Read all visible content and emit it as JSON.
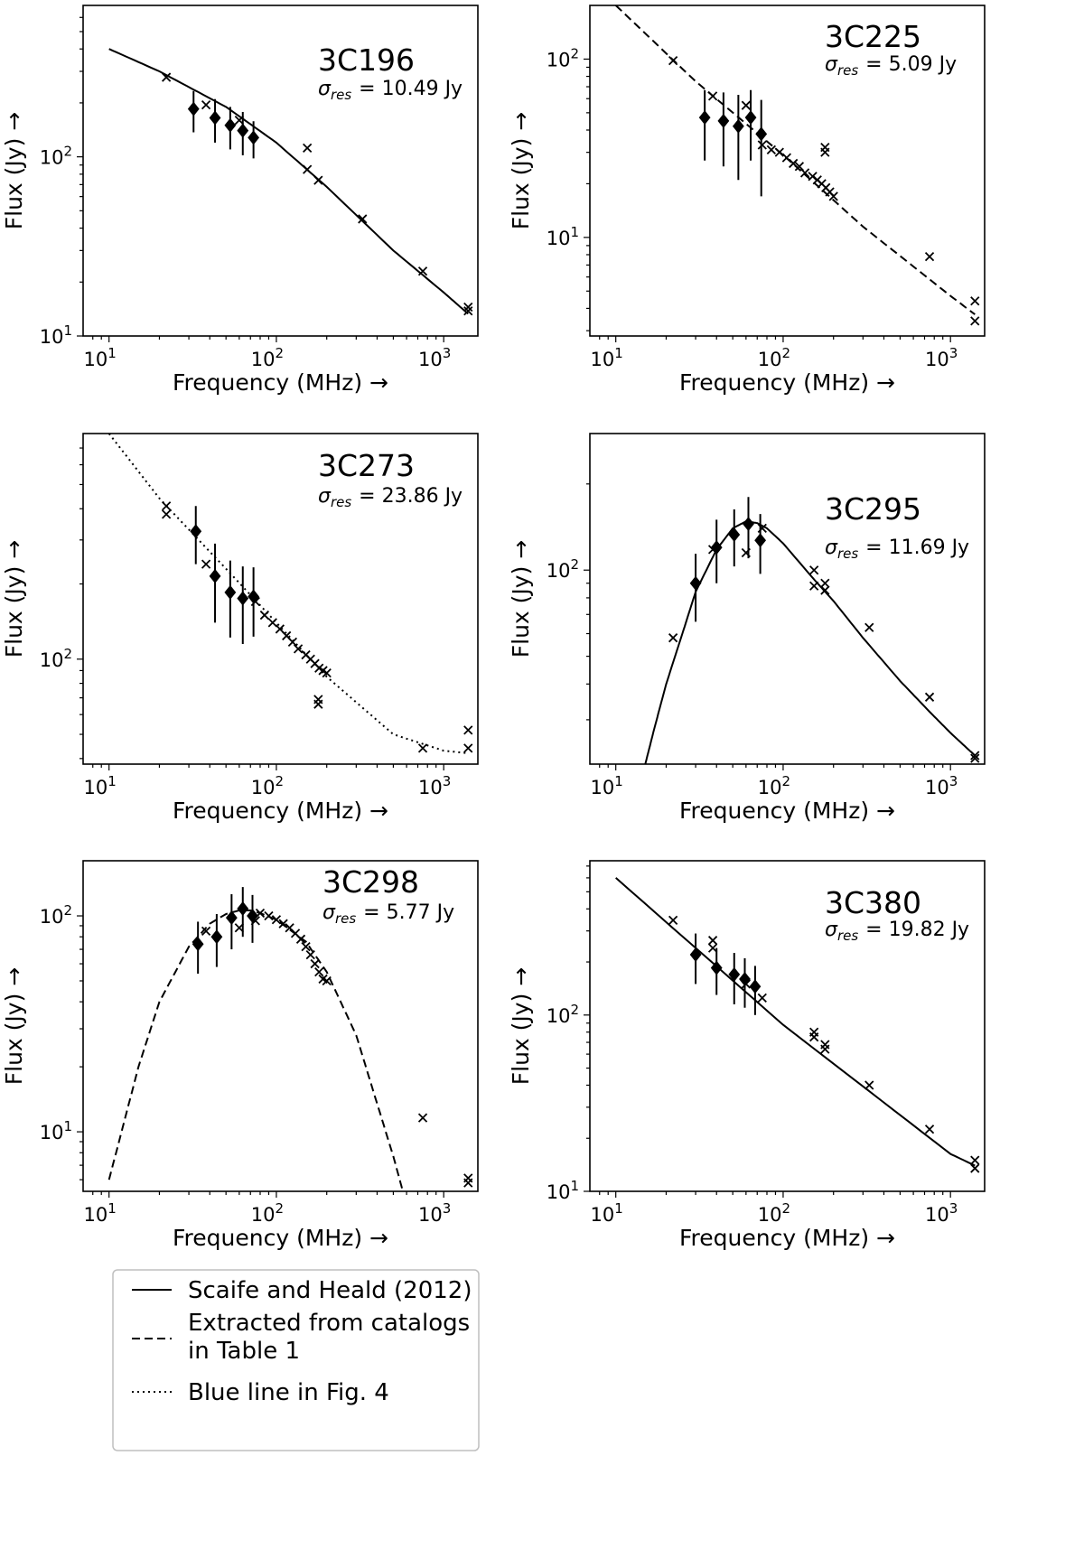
{
  "figure": {
    "legend": [
      {
        "style": "solid",
        "lines": [
          "Scaife and Heald (2012)"
        ]
      },
      {
        "style": "dashed",
        "lines": [
          "Extracted from catalogs",
          "in Table 1"
        ]
      },
      {
        "style": "dotted",
        "lines": [
          "Blue line in Fig. 4"
        ]
      }
    ]
  },
  "chart_data": [
    {
      "type": "scatter",
      "title": "3C196",
      "sigma_label": "σres",
      "sigma_value": "= 10.49 Jy",
      "xlabel": "Frequency (MHz)  →",
      "ylabel": "Flux (Jy)  →",
      "xscale": "log",
      "yscale": "log",
      "xlim": [
        7,
        1600
      ],
      "ylim": [
        10,
        700
      ],
      "xticks": [
        {
          "value": 10,
          "base": "10",
          "exp": "1"
        },
        {
          "value": 100,
          "base": "10",
          "exp": "2"
        },
        {
          "value": 1000,
          "base": "10",
          "exp": "3"
        }
      ],
      "yticks": [
        {
          "value": 10,
          "base": "10",
          "exp": "1"
        },
        {
          "value": 100,
          "base": "10",
          "exp": "2"
        }
      ],
      "model_style": "solid",
      "model_curve": [
        [
          10,
          400
        ],
        [
          20,
          300
        ],
        [
          50,
          190
        ],
        [
          100,
          120
        ],
        [
          200,
          68
        ],
        [
          500,
          30
        ],
        [
          1000,
          17.5
        ],
        [
          1400,
          13.3
        ]
      ],
      "catalog_points": [
        [
          22,
          278
        ],
        [
          38,
          195
        ],
        [
          60,
          160
        ],
        [
          153,
          112
        ],
        [
          153,
          85
        ],
        [
          178,
          74
        ],
        [
          327,
          45
        ],
        [
          750,
          23
        ],
        [
          1400,
          14.5
        ],
        [
          1400,
          13.8
        ]
      ],
      "diamond_points": [
        {
          "x": 32,
          "y": 185,
          "err": 48
        },
        {
          "x": 43,
          "y": 165,
          "err": 45
        },
        {
          "x": 53,
          "y": 150,
          "err": 40
        },
        {
          "x": 63,
          "y": 140,
          "err": 38
        },
        {
          "x": 73,
          "y": 128,
          "err": 30
        }
      ]
    },
    {
      "type": "scatter",
      "title": "3C225",
      "sigma_label": "σres",
      "sigma_value": "= 5.09 Jy",
      "xlabel": "Frequency (MHz)  →",
      "ylabel": "Flux (Jy)  →",
      "xscale": "log",
      "yscale": "log",
      "xlim": [
        7,
        1600
      ],
      "ylim": [
        2.8,
        200
      ],
      "xticks": [
        {
          "value": 10,
          "base": "10",
          "exp": "1"
        },
        {
          "value": 100,
          "base": "10",
          "exp": "2"
        },
        {
          "value": 1000,
          "base": "10",
          "exp": "3"
        }
      ],
      "yticks": [
        {
          "value": 10,
          "base": "10",
          "exp": "1"
        },
        {
          "value": 100,
          "base": "10",
          "exp": "2"
        }
      ],
      "model_style": "dashed",
      "model_curve": [
        [
          10,
          200
        ],
        [
          30,
          75
        ],
        [
          100,
          29
        ],
        [
          300,
          11.5
        ],
        [
          1000,
          4.7
        ],
        [
          1400,
          3.7
        ]
      ],
      "catalog_points": [
        [
          22,
          98
        ],
        [
          38,
          62
        ],
        [
          60,
          55
        ],
        [
          75,
          33
        ],
        [
          85,
          31
        ],
        [
          95,
          30
        ],
        [
          105,
          28
        ],
        [
          115,
          26
        ],
        [
          125,
          25
        ],
        [
          135,
          23
        ],
        [
          150,
          22
        ],
        [
          160,
          21
        ],
        [
          170,
          20
        ],
        [
          180,
          19
        ],
        [
          190,
          18
        ],
        [
          200,
          17
        ],
        [
          178,
          32
        ],
        [
          178,
          30
        ],
        [
          750,
          7.8
        ],
        [
          1400,
          4.4
        ],
        [
          1400,
          3.4
        ]
      ],
      "diamond_points": [
        {
          "x": 34,
          "y": 47,
          "err": 20
        },
        {
          "x": 44,
          "y": 45,
          "err": 20
        },
        {
          "x": 54,
          "y": 42,
          "err": 21
        },
        {
          "x": 64,
          "y": 47,
          "err": 20
        },
        {
          "x": 74,
          "y": 38,
          "err": 21
        }
      ]
    },
    {
      "type": "scatter",
      "title": "3C273",
      "sigma_label": "σres",
      "sigma_value": "= 23.86 Jy",
      "xlabel": "Frequency (MHz)  →",
      "ylabel": "Flux (Jy)  →",
      "xscale": "log",
      "yscale": "log",
      "xlim": [
        7,
        1600
      ],
      "ylim": [
        38,
        800
      ],
      "xticks": [
        {
          "value": 10,
          "base": "10",
          "exp": "1"
        },
        {
          "value": 100,
          "base": "10",
          "exp": "2"
        },
        {
          "value": 1000,
          "base": "10",
          "exp": "3"
        }
      ],
      "yticks": [
        {
          "value": 100,
          "base": "10",
          "exp": "2"
        }
      ],
      "model_style": "dotted",
      "model_curve": [
        [
          10,
          800
        ],
        [
          20,
          440
        ],
        [
          50,
          230
        ],
        [
          100,
          140
        ],
        [
          200,
          85
        ],
        [
          500,
          50
        ],
        [
          1000,
          43
        ],
        [
          1400,
          42
        ]
      ],
      "catalog_points": [
        [
          22,
          410
        ],
        [
          22,
          380
        ],
        [
          38,
          240
        ],
        [
          75,
          170
        ],
        [
          85,
          150
        ],
        [
          95,
          140
        ],
        [
          105,
          132
        ],
        [
          115,
          124
        ],
        [
          125,
          117
        ],
        [
          135,
          110
        ],
        [
          150,
          104
        ],
        [
          160,
          100
        ],
        [
          170,
          96
        ],
        [
          180,
          92
        ],
        [
          190,
          90
        ],
        [
          200,
          88
        ],
        [
          178,
          69
        ],
        [
          178,
          66
        ],
        [
          750,
          44
        ],
        [
          1400,
          52
        ],
        [
          1400,
          44
        ]
      ],
      "diamond_points": [
        {
          "x": 33,
          "y": 325,
          "err": 85
        },
        {
          "x": 43,
          "y": 215,
          "err": 75
        },
        {
          "x": 53,
          "y": 185,
          "err": 63
        },
        {
          "x": 63,
          "y": 175,
          "err": 60
        },
        {
          "x": 73,
          "y": 178,
          "err": 55
        }
      ]
    },
    {
      "type": "scatter",
      "title": "3C295",
      "sigma_label": "σres",
      "sigma_value": "= 11.69 Jy",
      "xlabel": "Frequency (MHz)  →",
      "ylabel": "Flux (Jy)  →",
      "xscale": "log",
      "yscale": "log",
      "xlim": [
        7,
        1600
      ],
      "ylim": [
        21,
        300
      ],
      "xticks": [
        {
          "value": 10,
          "base": "10",
          "exp": "1"
        },
        {
          "value": 100,
          "base": "10",
          "exp": "2"
        },
        {
          "value": 1000,
          "base": "10",
          "exp": "3"
        }
      ],
      "yticks": [
        {
          "value": 100,
          "base": "10",
          "exp": "2"
        }
      ],
      "model_style": "solid",
      "model_curve": [
        [
          15,
          21
        ],
        [
          17,
          28
        ],
        [
          20,
          40
        ],
        [
          25,
          60
        ],
        [
          30,
          84
        ],
        [
          40,
          118
        ],
        [
          50,
          140
        ],
        [
          60,
          148
        ],
        [
          70,
          146
        ],
        [
          80,
          140
        ],
        [
          100,
          124
        ],
        [
          150,
          94
        ],
        [
          200,
          78
        ],
        [
          300,
          58
        ],
        [
          500,
          41
        ],
        [
          750,
          32
        ],
        [
          1000,
          27
        ],
        [
          1400,
          22.5
        ]
      ],
      "catalog_points": [
        [
          22,
          58
        ],
        [
          38,
          118
        ],
        [
          60,
          115
        ],
        [
          75,
          140
        ],
        [
          153,
          100
        ],
        [
          153,
          88
        ],
        [
          178,
          90
        ],
        [
          178,
          85
        ],
        [
          327,
          63
        ],
        [
          750,
          36
        ],
        [
          1400,
          22.5
        ],
        [
          1400,
          22
        ]
      ],
      "diamond_points": [
        {
          "x": 30,
          "y": 90,
          "err": 24
        },
        {
          "x": 40,
          "y": 120,
          "err": 30
        },
        {
          "x": 51,
          "y": 133,
          "err": 30
        },
        {
          "x": 62,
          "y": 145,
          "err": 35
        },
        {
          "x": 73,
          "y": 127,
          "err": 30
        }
      ]
    },
    {
      "type": "scatter",
      "title": "3C298",
      "sigma_label": "σres",
      "sigma_value": "= 5.77 Jy",
      "xlabel": "Frequency (MHz)  →",
      "ylabel": "Flux (Jy)  →",
      "xscale": "log",
      "yscale": "log",
      "xlim": [
        7,
        1600
      ],
      "ylim": [
        5.3,
        180
      ],
      "xticks": [
        {
          "value": 10,
          "base": "10",
          "exp": "1"
        },
        {
          "value": 100,
          "base": "10",
          "exp": "2"
        },
        {
          "value": 1000,
          "base": "10",
          "exp": "3"
        }
      ],
      "yticks": [
        {
          "value": 10,
          "base": "10",
          "exp": "1"
        },
        {
          "value": 100,
          "base": "10",
          "exp": "2"
        }
      ],
      "model_style": "dashed",
      "model_curve": [
        [
          10,
          6
        ],
        [
          15,
          20
        ],
        [
          20,
          40
        ],
        [
          30,
          72
        ],
        [
          40,
          92
        ],
        [
          50,
          102
        ],
        [
          60,
          106
        ],
        [
          70,
          106
        ],
        [
          80,
          103
        ],
        [
          100,
          96
        ],
        [
          150,
          76
        ],
        [
          200,
          55
        ],
        [
          300,
          28
        ],
        [
          400,
          13.5
        ],
        [
          500,
          7.7
        ],
        [
          570,
          5.3
        ]
      ],
      "catalog_points": [
        [
          38,
          85
        ],
        [
          60,
          88
        ],
        [
          75,
          95
        ],
        [
          80,
          103
        ],
        [
          90,
          100
        ],
        [
          100,
          96
        ],
        [
          110,
          92
        ],
        [
          120,
          88
        ],
        [
          130,
          83
        ],
        [
          140,
          78
        ],
        [
          150,
          72
        ],
        [
          160,
          66
        ],
        [
          170,
          60
        ],
        [
          180,
          55
        ],
        [
          190,
          51
        ],
        [
          200,
          50
        ],
        [
          750,
          11.6
        ],
        [
          1400,
          6.1
        ],
        [
          1400,
          5.8
        ]
      ],
      "diamond_points": [
        {
          "x": 34,
          "y": 74,
          "err": 20
        },
        {
          "x": 44,
          "y": 80,
          "err": 22
        },
        {
          "x": 54,
          "y": 98,
          "err": 28
        },
        {
          "x": 63,
          "y": 108,
          "err": 28
        },
        {
          "x": 72,
          "y": 100,
          "err": 25
        }
      ]
    },
    {
      "type": "scatter",
      "title": "3C380",
      "sigma_label": "σres",
      "sigma_value": "= 19.82 Jy",
      "xlabel": "Frequency (MHz)  →",
      "ylabel": "Flux (Jy)  →",
      "xscale": "log",
      "yscale": "log",
      "xlim": [
        7,
        1600
      ],
      "ylim": [
        10,
        750
      ],
      "xticks": [
        {
          "value": 10,
          "base": "10",
          "exp": "1"
        },
        {
          "value": 100,
          "base": "10",
          "exp": "2"
        },
        {
          "value": 1000,
          "base": "10",
          "exp": "3"
        }
      ],
      "yticks": [
        {
          "value": 10,
          "base": "10",
          "exp": "1"
        },
        {
          "value": 100,
          "base": "10",
          "exp": "2"
        }
      ],
      "model_style": "solid",
      "model_curve": [
        [
          10,
          600
        ],
        [
          100,
          88
        ],
        [
          1000,
          16.3
        ],
        [
          1400,
          14
        ]
      ],
      "catalog_points": [
        [
          22,
          345
        ],
        [
          38,
          265
        ],
        [
          38,
          240
        ],
        [
          60,
          150
        ],
        [
          75,
          125
        ],
        [
          153,
          80
        ],
        [
          153,
          75
        ],
        [
          178,
          68
        ],
        [
          178,
          64
        ],
        [
          327,
          40
        ],
        [
          750,
          22.5
        ],
        [
          1400,
          15
        ],
        [
          1400,
          13.5
        ]
      ],
      "diamond_points": [
        {
          "x": 30,
          "y": 220,
          "err": 70
        },
        {
          "x": 40,
          "y": 185,
          "err": 55
        },
        {
          "x": 51,
          "y": 170,
          "err": 55
        },
        {
          "x": 59,
          "y": 160,
          "err": 50
        },
        {
          "x": 68,
          "y": 145,
          "err": 45
        }
      ]
    }
  ]
}
